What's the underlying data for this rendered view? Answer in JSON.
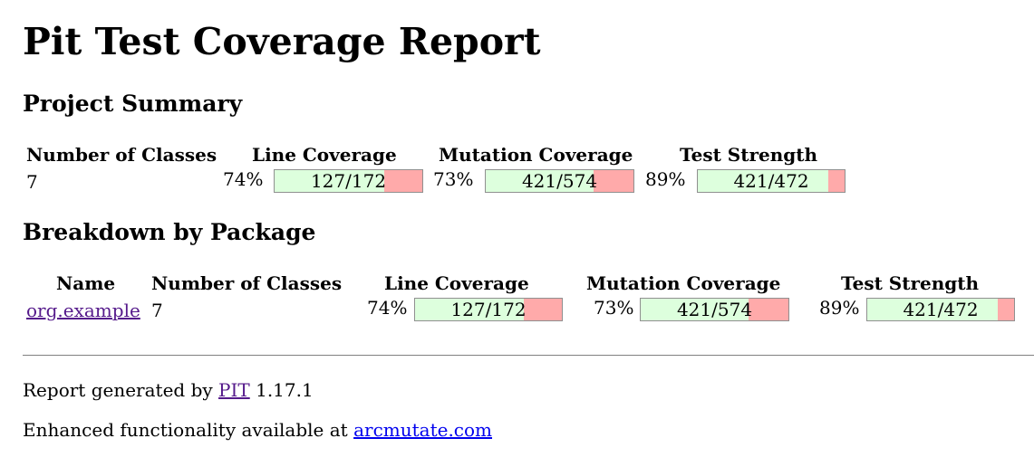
{
  "title": "Pit Test Coverage Report",
  "project_summary": {
    "heading": "Project Summary",
    "headers": {
      "classes": "Number of Classes",
      "line": "Line Coverage",
      "mutation": "Mutation Coverage",
      "strength": "Test Strength"
    },
    "classes": "7",
    "line": {
      "pct": "74%",
      "label": "127/172",
      "fraction": 0.74
    },
    "mutation": {
      "pct": "73%",
      "label": "421/574",
      "fraction": 0.73
    },
    "strength": {
      "pct": "89%",
      "label": "421/472",
      "fraction": 0.89
    }
  },
  "breakdown": {
    "heading": "Breakdown by Package",
    "headers": {
      "name": "Name",
      "classes": "Number of Classes",
      "line": "Line Coverage",
      "mutation": "Mutation Coverage",
      "strength": "Test Strength"
    },
    "rows": [
      {
        "name": "org.example",
        "classes": "7",
        "line": {
          "pct": "74%",
          "label": "127/172",
          "fraction": 0.74
        },
        "mutation": {
          "pct": "73%",
          "label": "421/574",
          "fraction": 0.73
        },
        "strength": {
          "pct": "89%",
          "label": "421/472",
          "fraction": 0.89
        }
      }
    ]
  },
  "footer": {
    "generated_prefix": "Report generated by",
    "pit_link": "PIT",
    "version": "1.17.1",
    "enhanced_prefix": "Enhanced functionality available at",
    "arcmutate_link": "arcmutate.com"
  },
  "colors": {
    "covered": "#ddffdd",
    "uncovered": "#ffaaaa",
    "visited_link": "#551a8b",
    "link": "#0000ee"
  }
}
